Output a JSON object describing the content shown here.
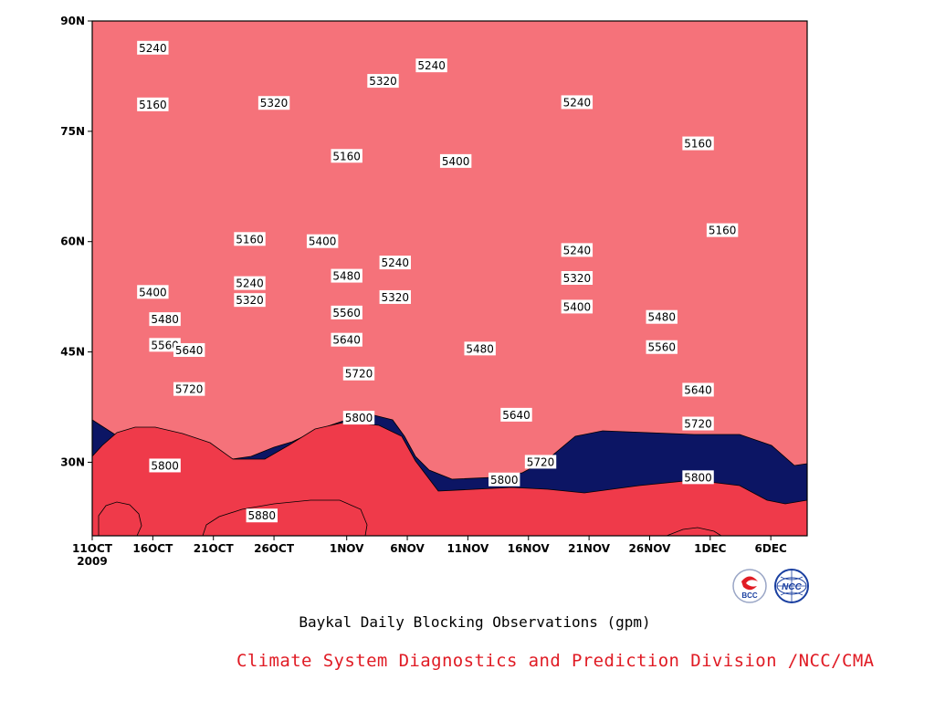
{
  "chart_data": {
    "type": "contour",
    "x_ticks": [
      "11OCT",
      "16OCT",
      "21OCT",
      "26OCT",
      "1NOV",
      "6NOV",
      "11NOV",
      "16NOV",
      "21NOV",
      "26NOV",
      "1DEC",
      "6DEC"
    ],
    "x_year": "2009",
    "y_ticks": [
      "30N",
      "45N",
      "60N",
      "75N",
      "90N"
    ],
    "levels": [
      5160,
      5240,
      5320,
      5400,
      5480,
      5560,
      5640,
      5720,
      5800,
      5880
    ],
    "colors": [
      "#0c1564",
      "#1f24e8",
      "#4f4fe8",
      "#5b8de8",
      "#64c4fc",
      "#f9f77d",
      "#fde3a0",
      "#fba86f",
      "#f8744a",
      "#f5727a",
      "#ef3a4a"
    ],
    "contour_labels": [
      {
        "text": "5240",
        "date": "2009-10-16",
        "lat": 86.3
      },
      {
        "text": "5160",
        "date": "2009-10-16",
        "lat": 78.6
      },
      {
        "text": "5320",
        "date": "2009-10-26",
        "lat": 78.8
      },
      {
        "text": "5320",
        "date": "2009-11-04",
        "lat": 81.8
      },
      {
        "text": "5240",
        "date": "2009-11-08",
        "lat": 83.9
      },
      {
        "text": "5240",
        "date": "2009-11-20",
        "lat": 78.9
      },
      {
        "text": "5160",
        "date": "2009-11-01",
        "lat": 71.6
      },
      {
        "text": "5400",
        "date": "2009-11-10",
        "lat": 70.9
      },
      {
        "text": "5160",
        "date": "2009-11-30",
        "lat": 73.3
      },
      {
        "text": "5160",
        "date": "2009-12-02",
        "lat": 61.5
      },
      {
        "text": "5160",
        "date": "2009-10-24",
        "lat": 60.3
      },
      {
        "text": "5400",
        "date": "2009-10-30",
        "lat": 60.0
      },
      {
        "text": "5240",
        "date": "2009-11-20",
        "lat": 58.8
      },
      {
        "text": "5400",
        "date": "2009-10-16",
        "lat": 53.1
      },
      {
        "text": "5240",
        "date": "2009-10-24",
        "lat": 54.3
      },
      {
        "text": "5480",
        "date": "2009-11-01",
        "lat": 55.3
      },
      {
        "text": "5240",
        "date": "2009-11-05",
        "lat": 57.1
      },
      {
        "text": "5320",
        "date": "2009-11-20",
        "lat": 55.0
      },
      {
        "text": "5320",
        "date": "2009-10-24",
        "lat": 52.0
      },
      {
        "text": "5320",
        "date": "2009-11-05",
        "lat": 52.4
      },
      {
        "text": "5480",
        "date": "2009-10-17",
        "lat": 49.4
      },
      {
        "text": "5560",
        "date": "2009-11-01",
        "lat": 50.3
      },
      {
        "text": "5400",
        "date": "2009-11-20",
        "lat": 51.1
      },
      {
        "text": "5480",
        "date": "2009-11-27",
        "lat": 49.7
      },
      {
        "text": "5560",
        "date": "2009-10-17",
        "lat": 45.9
      },
      {
        "text": "5640",
        "date": "2009-11-01",
        "lat": 46.6
      },
      {
        "text": "5560",
        "date": "2009-11-27",
        "lat": 45.6
      },
      {
        "text": "5480",
        "date": "2009-11-12",
        "lat": 45.4
      },
      {
        "text": "5640",
        "date": "2009-10-19",
        "lat": 45.2
      },
      {
        "text": "5720",
        "date": "2009-11-02",
        "lat": 42.0
      },
      {
        "text": "5720",
        "date": "2009-10-19",
        "lat": 39.9
      },
      {
        "text": "5640",
        "date": "2009-11-30",
        "lat": 39.8
      },
      {
        "text": "5640",
        "date": "2009-11-15",
        "lat": 36.4
      },
      {
        "text": "5720",
        "date": "2009-11-30",
        "lat": 35.2
      },
      {
        "text": "5800",
        "date": "2009-11-02",
        "lat": 36.0
      },
      {
        "text": "5720",
        "date": "2009-11-17",
        "lat": 30.0
      },
      {
        "text": "5800",
        "date": "2009-10-17",
        "lat": 29.5
      },
      {
        "text": "5800",
        "date": "2009-11-14",
        "lat": 27.6
      },
      {
        "text": "5800",
        "date": "2009-11-30",
        "lat": 27.9
      },
      {
        "text": "5880",
        "date": "2009-10-25",
        "lat": 22.7
      }
    ]
  },
  "subtitle": "Baykal Daily Blocking Observations (gpm)",
  "credit": "Climate System Diagnostics and Prediction Division /NCC/CMA",
  "logos": [
    {
      "name": "bcc-logo",
      "text": "BCC",
      "color": "#1a3fa0",
      "accent": "#e01b24"
    },
    {
      "name": "ncc-logo",
      "text": "NCC",
      "color": "#1a3fa0"
    }
  ]
}
